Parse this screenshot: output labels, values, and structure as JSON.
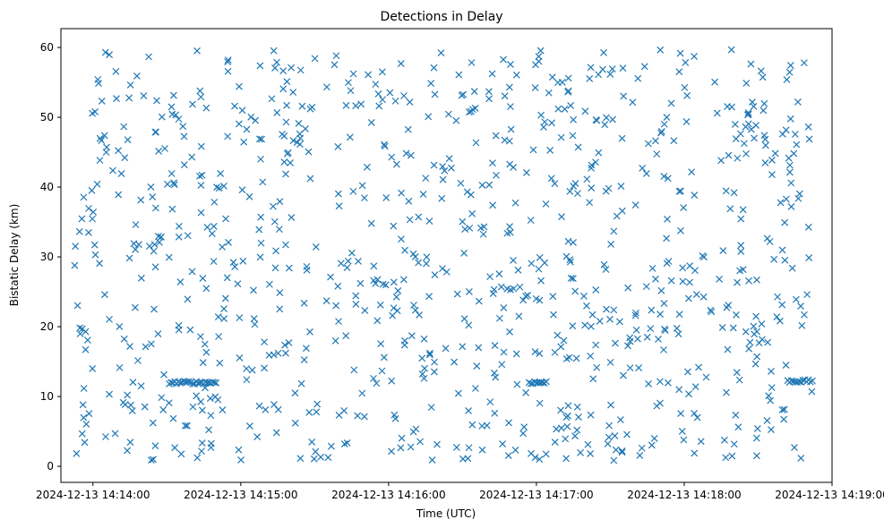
{
  "chart_data": {
    "type": "scatter",
    "title": "Detections in Delay",
    "xlabel": "Time (UTC)",
    "ylabel": "Bistatic Delay (km)",
    "marker": "x",
    "color": "#1f77b4",
    "grid": false,
    "legend": "none",
    "x_range": [
      "2024-12-13 14:13:47",
      "2024-12-13 14:19:00"
    ],
    "ylim": [
      -2.3,
      62.7
    ],
    "x_ticks": [
      "2024-12-13 14:14:00",
      "2024-12-13 14:15:00",
      "2024-12-13 14:16:00",
      "2024-12-13 14:17:00",
      "2024-12-13 14:18:00",
      "2024-12-13 14:19:00"
    ],
    "y_ticks": [
      "0",
      "10",
      "20",
      "30",
      "40",
      "50",
      "60"
    ],
    "data_window": [
      "2024-12-13 14:13:52",
      "2024-12-13 14:18:52"
    ],
    "delay_range": [
      0.8,
      59.8
    ],
    "points_note_count": 1000,
    "tracks": [
      {
        "x_start": "2024-12-13 14:14:31",
        "x_end": "2024-12-13 14:14:50",
        "y": 12.0
      },
      {
        "x_start": "2024-12-13 14:16:57",
        "x_end": "2024-12-13 14:17:04",
        "y": 12.0
      },
      {
        "x_start": "2024-12-13 14:18:42",
        "x_end": "2024-12-13 14:18:52",
        "y": 12.2
      }
    ]
  }
}
